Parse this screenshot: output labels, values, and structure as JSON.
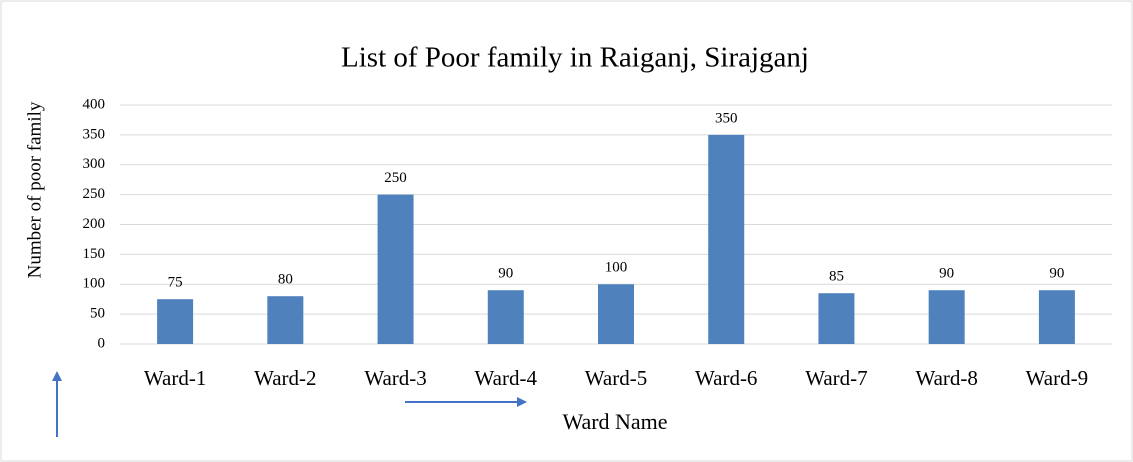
{
  "chart_data": {
    "type": "bar",
    "title": "List of Poor family in Raiganj, Sirajganj",
    "x_label": "Ward Name",
    "y_label": "Number of poor family",
    "categories": [
      "Ward-1",
      "Ward-2",
      "Ward-3",
      "Ward-4",
      "Ward-5",
      "Ward-6",
      "Ward-7",
      "Ward-8",
      "Ward-9"
    ],
    "values": [
      75,
      80,
      250,
      90,
      100,
      350,
      85,
      90,
      90
    ],
    "color": "#4f81bd",
    "ylim": [
      0,
      400
    ],
    "yticks": [
      0,
      50,
      100,
      150,
      200,
      250,
      300,
      350,
      400
    ],
    "grid": true
  }
}
